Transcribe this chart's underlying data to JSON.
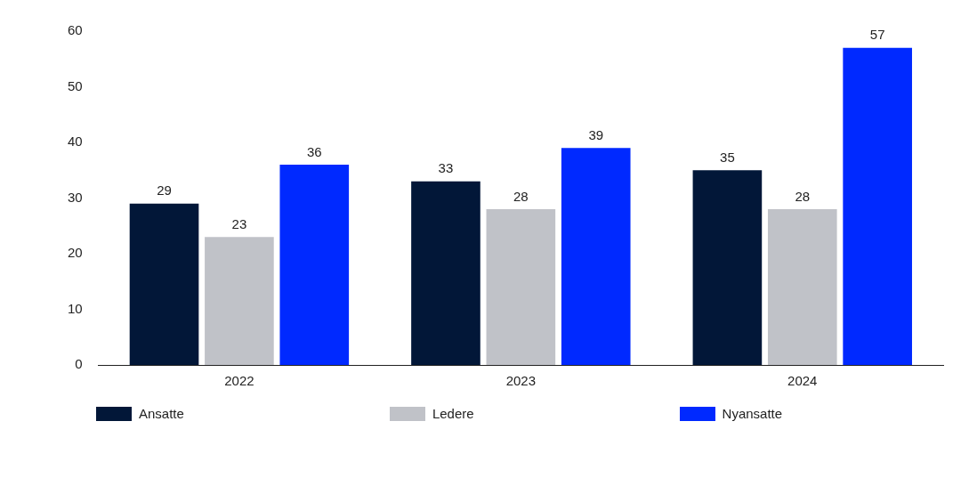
{
  "chart_data": {
    "type": "bar",
    "categories": [
      "2022",
      "2023",
      "2024"
    ],
    "series": [
      {
        "name": "Ansatte",
        "color": "#021738",
        "values": [
          29,
          33,
          35
        ]
      },
      {
        "name": "Ledere",
        "color": "#c0c2c8",
        "values": [
          23,
          28,
          28
        ]
      },
      {
        "name": "Nyansatte",
        "color": "#0029ff",
        "values": [
          36,
          39,
          57
        ]
      }
    ],
    "ylim": [
      0,
      60
    ],
    "yticks": [
      0,
      10,
      20,
      30,
      40,
      50,
      60
    ],
    "grid": false,
    "legend": "bottom",
    "data_labels": true
  }
}
